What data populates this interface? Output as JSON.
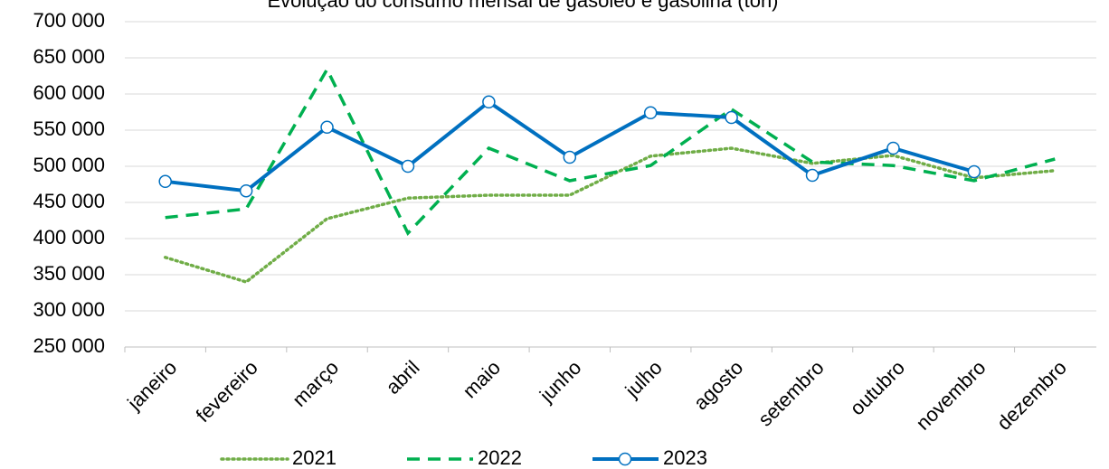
{
  "chart_data": {
    "type": "line",
    "title": "Evolução do consumo mensal de gasóleo e gasolina (ton)",
    "categories": [
      "janeiro",
      "fevereiro",
      "março",
      "abril",
      "maio",
      "junho",
      "julho",
      "agosto",
      "setembro",
      "outubro",
      "novembro",
      "dezembro"
    ],
    "series": [
      {
        "name": "2021",
        "color": "#70ad47",
        "style": "dotted",
        "marker": false,
        "values": [
          374000,
          340000,
          427500,
          456000,
          460000,
          460000,
          514000,
          525000,
          504000,
          515000,
          484000,
          494000
        ]
      },
      {
        "name": "2022",
        "color": "#00b050",
        "style": "dashed",
        "marker": false,
        "values": [
          429000,
          441000,
          634000,
          407500,
          525000,
          480000,
          501000,
          579000,
          506000,
          501000,
          480000,
          510000
        ]
      },
      {
        "name": "2023",
        "color": "#0070c0",
        "style": "solid",
        "marker": true,
        "values": [
          479000,
          466000,
          554000,
          500000,
          589000,
          512500,
          574000,
          567500,
          487500,
          525000,
          492500,
          null
        ]
      }
    ],
    "ylim": [
      250000,
      700000
    ],
    "yticks": [
      {
        "value": 250000,
        "label": "250 000"
      },
      {
        "value": 300000,
        "label": "300 000"
      },
      {
        "value": 350000,
        "label": "350 000"
      },
      {
        "value": 400000,
        "label": "400 000"
      },
      {
        "value": 450000,
        "label": "450 000"
      },
      {
        "value": 500000,
        "label": "500 000"
      },
      {
        "value": 550000,
        "label": "550 000"
      },
      {
        "value": 600000,
        "label": "600 000"
      },
      {
        "value": 650000,
        "label": "650 000"
      },
      {
        "value": 700000,
        "label": "700 000"
      }
    ],
    "grid": true,
    "legend": "bottom"
  }
}
